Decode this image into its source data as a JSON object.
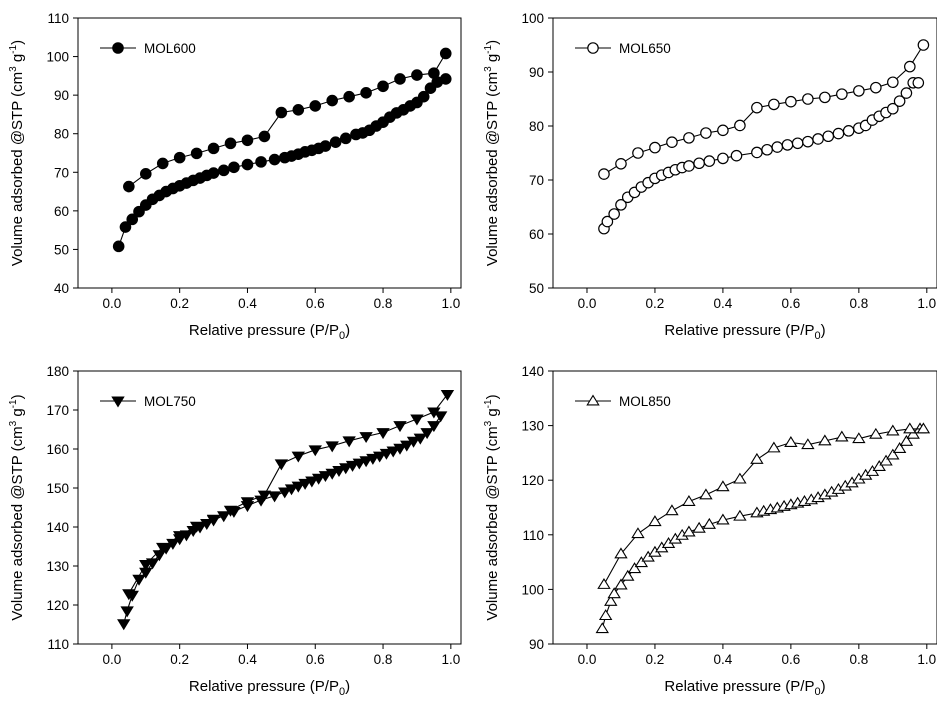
{
  "chart_data": [
    {
      "type": "scatter",
      "legend": "MOL600",
      "marker": "circle-filled",
      "legend_placement": "top-left",
      "xlabel": "Relative pressure (P/P0)",
      "ylabel": "Volume adsorbed @STP (cm3 g-1)",
      "xlim": [
        -0.1,
        1.03
      ],
      "ylim": [
        40,
        110
      ],
      "xticks": [
        "0.0",
        "0.2",
        "0.4",
        "0.6",
        "0.8",
        "1.0"
      ],
      "yticks": [
        "40",
        "50",
        "60",
        "70",
        "80",
        "90",
        "100",
        "110"
      ],
      "grid": false,
      "series": [
        {
          "x": [
            0.02,
            0.04,
            0.06,
            0.08,
            0.1,
            0.12,
            0.14,
            0.16,
            0.18,
            0.2,
            0.22,
            0.24,
            0.26,
            0.28,
            0.3,
            0.33,
            0.36,
            0.4,
            0.44,
            0.48,
            0.51,
            0.53,
            0.55,
            0.57,
            0.59,
            0.61,
            0.63,
            0.66,
            0.69,
            0.72,
            0.74,
            0.76,
            0.78,
            0.8,
            0.82,
            0.84,
            0.86,
            0.88,
            0.9,
            0.92,
            0.94,
            0.96,
            0.985
          ],
          "y": [
            50.8,
            55.8,
            57.8,
            59.8,
            61.5,
            63.0,
            64.0,
            65.0,
            65.8,
            66.5,
            67.2,
            67.9,
            68.5,
            69.2,
            69.8,
            70.5,
            71.3,
            72.0,
            72.7,
            73.3,
            73.8,
            74.2,
            74.7,
            75.3,
            75.7,
            76.2,
            76.8,
            77.8,
            78.8,
            79.8,
            80.2,
            80.9,
            82.0,
            83.0,
            84.3,
            85.4,
            86.2,
            87.2,
            88.1,
            89.6,
            91.8,
            93.4,
            94.2
          ]
        },
        {
          "x": [
            0.985,
            0.95,
            0.9,
            0.85,
            0.8,
            0.75,
            0.7,
            0.65,
            0.6,
            0.55,
            0.5,
            0.45,
            0.4,
            0.35,
            0.3,
            0.25,
            0.2,
            0.15,
            0.1,
            0.05
          ],
          "y": [
            100.8,
            95.7,
            95.2,
            94.2,
            92.3,
            90.6,
            89.6,
            88.6,
            87.2,
            86.2,
            85.5,
            79.3,
            78.3,
            77.5,
            76.2,
            74.9,
            73.8,
            72.3,
            69.6,
            66.3
          ]
        }
      ]
    },
    {
      "type": "scatter",
      "legend": "MOL650",
      "marker": "circle-open",
      "legend_placement": "top-left",
      "xlabel": "Relative pressure (P/P0)",
      "ylabel": "Volume adsorbed @STP (cm3 g-1)",
      "xlim": [
        -0.1,
        1.03
      ],
      "ylim": [
        50,
        100
      ],
      "xticks": [
        "0.0",
        "0.2",
        "0.4",
        "0.6",
        "0.8",
        "1.0"
      ],
      "yticks": [
        "50",
        "60",
        "70",
        "80",
        "90",
        "100"
      ],
      "grid": false,
      "series": [
        {
          "x": [
            0.05,
            0.06,
            0.08,
            0.1,
            0.12,
            0.14,
            0.16,
            0.18,
            0.2,
            0.22,
            0.24,
            0.26,
            0.28,
            0.3,
            0.33,
            0.36,
            0.4,
            0.44,
            0.5,
            0.53,
            0.56,
            0.59,
            0.62,
            0.65,
            0.68,
            0.71,
            0.74,
            0.77,
            0.8,
            0.82,
            0.84,
            0.86,
            0.88,
            0.9,
            0.92,
            0.94,
            0.96,
            0.975
          ],
          "y": [
            61.0,
            62.3,
            63.7,
            65.4,
            66.8,
            67.7,
            68.7,
            69.5,
            70.3,
            70.9,
            71.4,
            71.9,
            72.3,
            72.6,
            73.1,
            73.5,
            74.0,
            74.5,
            75.1,
            75.6,
            76.1,
            76.5,
            76.8,
            77.1,
            77.6,
            78.1,
            78.6,
            79.1,
            79.6,
            80.1,
            81.1,
            81.8,
            82.5,
            83.2,
            84.6,
            86.1,
            88.0,
            88.0
          ]
        },
        {
          "x": [
            0.99,
            0.95,
            0.9,
            0.85,
            0.8,
            0.75,
            0.7,
            0.65,
            0.6,
            0.55,
            0.5,
            0.45,
            0.4,
            0.35,
            0.3,
            0.25,
            0.2,
            0.15,
            0.1,
            0.05
          ],
          "y": [
            95.0,
            91.0,
            88.1,
            87.1,
            86.5,
            85.9,
            85.3,
            85.0,
            84.5,
            84.0,
            83.4,
            80.1,
            79.2,
            78.7,
            77.8,
            77.0,
            76.0,
            75.0,
            73.0,
            71.1
          ]
        }
      ]
    },
    {
      "type": "scatter",
      "legend": "MOL750",
      "marker": "triangle-down-filled",
      "legend_placement": "top-left",
      "xlabel": "Relative pressure (P/P0)",
      "ylabel": "Volume adsorbed @STP (cm3 g-1)",
      "xlim": [
        -0.1,
        1.03
      ],
      "ylim": [
        110,
        180
      ],
      "xticks": [
        "0.0",
        "0.2",
        "0.4",
        "0.6",
        "0.8",
        "1.0"
      ],
      "yticks": [
        "110",
        "120",
        "130",
        "140",
        "150",
        "160",
        "170",
        "180"
      ],
      "grid": false,
      "series": [
        {
          "x": [
            0.035,
            0.045,
            0.06,
            0.08,
            0.1,
            0.12,
            0.14,
            0.16,
            0.18,
            0.2,
            0.22,
            0.24,
            0.26,
            0.28,
            0.3,
            0.33,
            0.36,
            0.4,
            0.44,
            0.48,
            0.51,
            0.53,
            0.55,
            0.57,
            0.59,
            0.61,
            0.63,
            0.65,
            0.67,
            0.69,
            0.71,
            0.73,
            0.75,
            0.77,
            0.79,
            0.81,
            0.83,
            0.85,
            0.87,
            0.89,
            0.91,
            0.93,
            0.95,
            0.97
          ],
          "y": [
            115.2,
            118.5,
            122.5,
            126.6,
            128.4,
            130.8,
            132.9,
            134.6,
            135.8,
            137.0,
            138.0,
            139.1,
            140.0,
            140.9,
            141.8,
            142.9,
            144.0,
            145.5,
            146.9,
            148.0,
            149.0,
            149.8,
            150.5,
            151.2,
            151.8,
            152.5,
            153.2,
            153.8,
            154.5,
            155.2,
            155.8,
            156.4,
            157.0,
            157.6,
            158.2,
            158.9,
            159.5,
            160.2,
            161.0,
            162.0,
            162.8,
            164.2,
            166.0,
            168.5
          ]
        },
        {
          "x": [
            0.99,
            0.95,
            0.9,
            0.85,
            0.8,
            0.75,
            0.7,
            0.65,
            0.6,
            0.55,
            0.5,
            0.45,
            0.4,
            0.35,
            0.3,
            0.25,
            0.2,
            0.15,
            0.1,
            0.05
          ],
          "y": [
            174.0,
            169.5,
            167.7,
            166.0,
            164.2,
            163.2,
            162.1,
            160.8,
            159.8,
            158.2,
            156.2,
            148.2,
            146.5,
            144.3,
            142.0,
            140.2,
            137.8,
            134.8,
            130.4,
            122.9
          ]
        }
      ]
    },
    {
      "type": "scatter",
      "legend": "MOL850",
      "marker": "triangle-up-open",
      "legend_placement": "top-left",
      "xlabel": "Relative pressure (P/P0)",
      "ylabel": "Volume adsorbed @STP (cm3 g-1)",
      "xlim": [
        -0.1,
        1.03
      ],
      "ylim": [
        90,
        140
      ],
      "xticks": [
        "0.0",
        "0.2",
        "0.4",
        "0.6",
        "0.8",
        "1.0"
      ],
      "yticks": [
        "90",
        "100",
        "110",
        "120",
        "130",
        "140"
      ],
      "grid": false,
      "series": [
        {
          "x": [
            0.045,
            0.055,
            0.07,
            0.08,
            0.1,
            0.12,
            0.14,
            0.16,
            0.18,
            0.2,
            0.22,
            0.24,
            0.26,
            0.28,
            0.3,
            0.33,
            0.36,
            0.4,
            0.45,
            0.5,
            0.52,
            0.54,
            0.56,
            0.58,
            0.6,
            0.62,
            0.64,
            0.66,
            0.68,
            0.7,
            0.72,
            0.74,
            0.76,
            0.78,
            0.8,
            0.82,
            0.84,
            0.86,
            0.88,
            0.9,
            0.92,
            0.94,
            0.96,
            0.98
          ],
          "y": [
            92.8,
            95.2,
            97.8,
            99.2,
            100.8,
            102.4,
            103.8,
            104.9,
            105.9,
            106.8,
            107.6,
            108.4,
            109.2,
            109.9,
            110.5,
            111.2,
            111.9,
            112.7,
            113.4,
            114.0,
            114.3,
            114.6,
            114.9,
            115.2,
            115.5,
            115.8,
            116.1,
            116.4,
            116.8,
            117.3,
            117.8,
            118.3,
            118.9,
            119.5,
            120.2,
            120.9,
            121.6,
            122.5,
            123.5,
            124.6,
            125.8,
            127.1,
            128.4,
            129.4
          ]
        },
        {
          "x": [
            0.99,
            0.95,
            0.9,
            0.85,
            0.8,
            0.75,
            0.7,
            0.65,
            0.6,
            0.55,
            0.5,
            0.45,
            0.4,
            0.35,
            0.3,
            0.25,
            0.2,
            0.15,
            0.1,
            0.05
          ],
          "y": [
            129.4,
            129.4,
            129.0,
            128.4,
            127.6,
            127.9,
            127.2,
            126.5,
            126.9,
            125.9,
            123.8,
            120.2,
            118.8,
            117.3,
            116.1,
            114.4,
            112.4,
            110.2,
            106.5,
            100.9
          ]
        }
      ]
    }
  ]
}
